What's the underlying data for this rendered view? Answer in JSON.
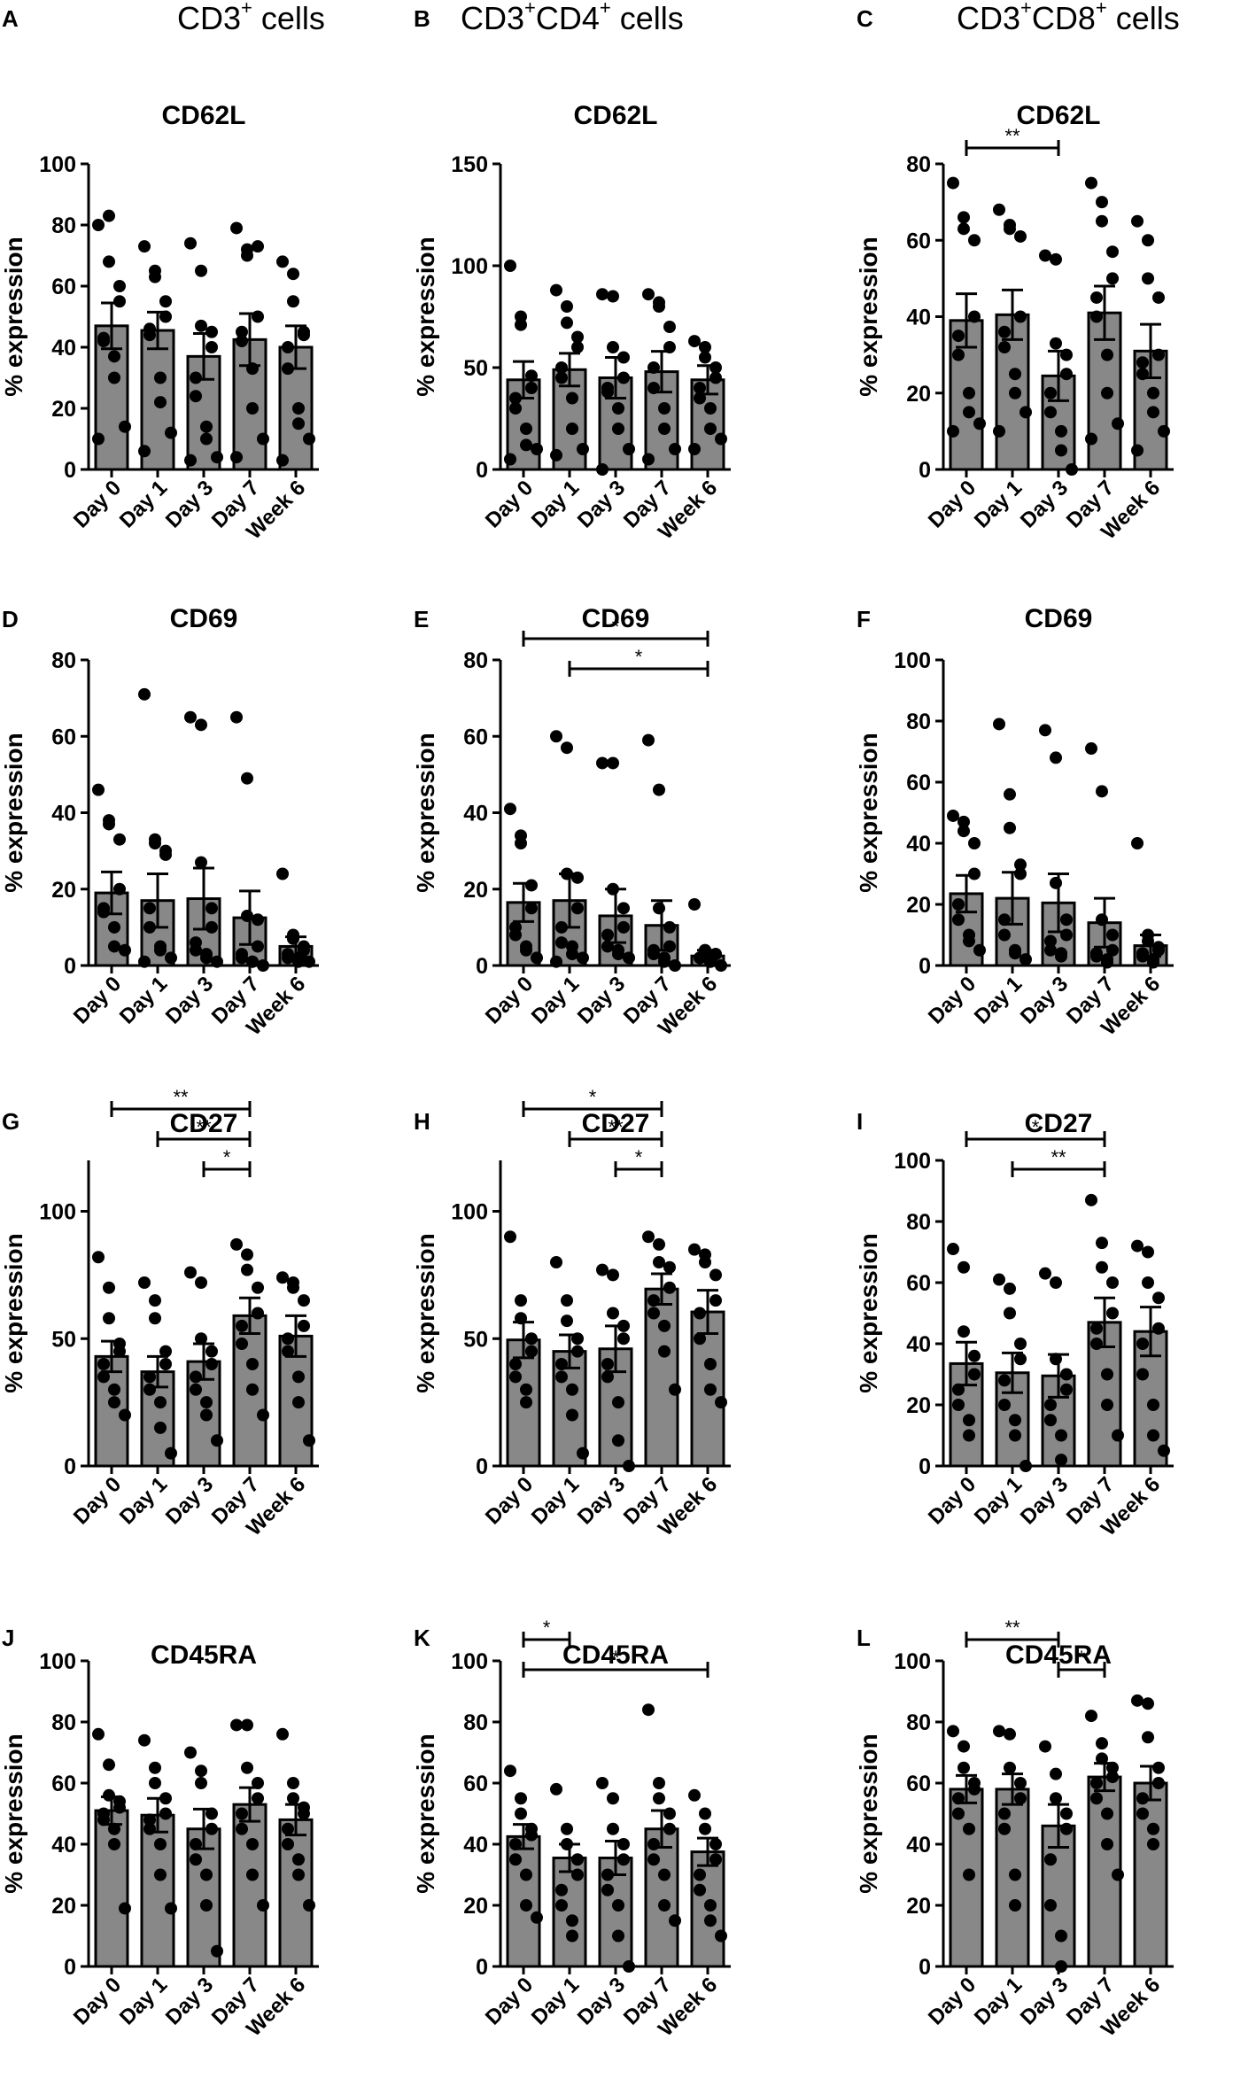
{
  "figure": {
    "column_headers": [
      {
        "parts": [
          {
            "t": "CD3",
            "sup": false
          },
          {
            "t": "+",
            "sup": true
          },
          {
            "t": " cells",
            "sup": false
          }
        ]
      },
      {
        "parts": [
          {
            "t": "CD3",
            "sup": false
          },
          {
            "t": "+",
            "sup": true
          },
          {
            "t": "CD4",
            "sup": false
          },
          {
            "t": "+",
            "sup": true
          },
          {
            "t": " cells",
            "sup": false
          }
        ]
      },
      {
        "parts": [
          {
            "t": "CD3",
            "sup": false
          },
          {
            "t": "+",
            "sup": true
          },
          {
            "t": "CD8",
            "sup": false
          },
          {
            "t": "+",
            "sup": true
          },
          {
            "t": " cells",
            "sup": false
          }
        ]
      }
    ]
  },
  "chart_data": [
    {
      "panel": "A",
      "type": "bar",
      "title": "CD62L",
      "ylabel": "% expression",
      "categories": [
        "Day 0",
        "Day 1",
        "Day 3",
        "Day 7",
        "Week 6"
      ],
      "ylim": [
        0,
        100
      ],
      "yticks": [
        0,
        20,
        40,
        60,
        80,
        100
      ],
      "means": [
        47,
        45.5,
        37,
        42.5,
        40
      ],
      "sem": [
        7.5,
        6,
        7.5,
        8.5,
        7
      ],
      "points": [
        [
          80,
          83,
          68,
          60,
          55,
          43,
          42,
          37,
          30,
          14,
          10
        ],
        [
          73,
          65,
          63,
          55,
          50,
          46,
          44,
          30,
          22,
          12,
          6
        ],
        [
          74,
          65,
          47,
          45,
          40,
          30,
          24,
          14,
          10,
          4,
          3
        ],
        [
          79,
          72,
          70,
          73,
          50,
          45,
          42,
          33,
          20,
          10,
          4
        ],
        [
          68,
          64,
          55,
          45,
          44,
          40,
          33,
          20,
          15,
          10,
          3
        ]
      ],
      "sig": []
    },
    {
      "panel": "B",
      "type": "bar",
      "title": "CD62L",
      "ylabel": "% expression",
      "categories": [
        "Day 0",
        "Day 1",
        "Day 3",
        "Day 7",
        "Week 6"
      ],
      "ylim": [
        0,
        150
      ],
      "yticks": [
        0,
        50,
        100,
        150
      ],
      "means": [
        44,
        49,
        45,
        48,
        44
      ],
      "sem": [
        9,
        8,
        10,
        10,
        7
      ],
      "points": [
        [
          100,
          75,
          71,
          46,
          40,
          35,
          30,
          20,
          12,
          10,
          5
        ],
        [
          88,
          80,
          72,
          65,
          60,
          50,
          45,
          35,
          20,
          10,
          7
        ],
        [
          86,
          85,
          60,
          55,
          45,
          40,
          38,
          30,
          20,
          10,
          0
        ],
        [
          86,
          82,
          80,
          70,
          60,
          50,
          40,
          30,
          20,
          10,
          5
        ],
        [
          63,
          60,
          55,
          50,
          45,
          40,
          35,
          30,
          20,
          15,
          10
        ]
      ],
      "sig": []
    },
    {
      "panel": "C",
      "type": "bar",
      "title": "CD62L",
      "ylabel": "% expression",
      "categories": [
        "Day 0",
        "Day 1",
        "Day 3",
        "Day 7",
        "Week 6"
      ],
      "ylim": [
        0,
        80
      ],
      "yticks": [
        0,
        20,
        40,
        60,
        80
      ],
      "means": [
        39,
        40.5,
        24.5,
        41,
        31
      ],
      "sem": [
        7,
        6.5,
        6.5,
        7,
        7
      ],
      "points": [
        [
          75,
          66,
          63,
          60,
          40,
          35,
          30,
          20,
          15,
          12,
          10
        ],
        [
          68,
          64,
          63,
          61,
          40,
          36,
          32,
          25,
          20,
          15,
          10
        ],
        [
          56,
          55,
          33,
          30,
          25,
          20,
          15,
          10,
          5,
          0
        ],
        [
          75,
          70,
          65,
          57,
          50,
          45,
          40,
          30,
          20,
          12,
          8
        ],
        [
          65,
          60,
          50,
          45,
          30,
          28,
          25,
          20,
          15,
          10,
          5
        ]
      ],
      "sig": [
        {
          "from": 0,
          "to": 2,
          "label": "**",
          "level": 0
        }
      ]
    },
    {
      "panel": "D",
      "type": "bar",
      "title": "CD69",
      "ylabel": "% expression",
      "categories": [
        "Day 0",
        "Day 1",
        "Day 3",
        "Day 7",
        "Week 6"
      ],
      "ylim": [
        0,
        80
      ],
      "yticks": [
        0,
        20,
        40,
        60,
        80
      ],
      "means": [
        19,
        17,
        17.5,
        12.5,
        5
      ],
      "sem": [
        5.5,
        7,
        8,
        7,
        2.5
      ],
      "points": [
        [
          46,
          37,
          38,
          33,
          20,
          15,
          14,
          10,
          5,
          4
        ],
        [
          71,
          33,
          32,
          30,
          29,
          15,
          10,
          5,
          4,
          2,
          1
        ],
        [
          65,
          63,
          27,
          15,
          10,
          6,
          4,
          3,
          2,
          1
        ],
        [
          65,
          49,
          13,
          12,
          5,
          3,
          2,
          1,
          1,
          0
        ],
        [
          24,
          8,
          7,
          5,
          4,
          3,
          2,
          2,
          1,
          1
        ]
      ],
      "sig": []
    },
    {
      "panel": "E",
      "type": "bar",
      "title": "CD69",
      "ylabel": "% expression",
      "categories": [
        "Day 0",
        "Day 1",
        "Day 3",
        "Day 7",
        "Week 6"
      ],
      "ylim": [
        0,
        80
      ],
      "yticks": [
        0,
        20,
        40,
        60,
        80
      ],
      "means": [
        16.5,
        17,
        13,
        10.5,
        2.5
      ],
      "sem": [
        5,
        7,
        7,
        6.5,
        1.5
      ],
      "points": [
        [
          41,
          34,
          32,
          21,
          15,
          10,
          8,
          5,
          4,
          2
        ],
        [
          60,
          57,
          24,
          23,
          15,
          10,
          6,
          5,
          3,
          2,
          1
        ],
        [
          53,
          53,
          20,
          15,
          10,
          8,
          5,
          4,
          3,
          2
        ],
        [
          59,
          46,
          15,
          10,
          5,
          4,
          3,
          2,
          1,
          0
        ],
        [
          16,
          4,
          4,
          3,
          3,
          2,
          2,
          1,
          1,
          0
        ]
      ],
      "sig": [
        {
          "from": 1,
          "to": 4,
          "label": "*",
          "level": 0
        },
        {
          "from": 0,
          "to": 4,
          "label": "*",
          "level": 1
        }
      ]
    },
    {
      "panel": "F",
      "type": "bar",
      "title": "CD69",
      "ylabel": "% expression",
      "categories": [
        "Day 0",
        "Day 1",
        "Day 3",
        "Day 7",
        "Week 6"
      ],
      "ylim": [
        0,
        100
      ],
      "yticks": [
        0,
        20,
        40,
        60,
        80,
        100
      ],
      "means": [
        23.5,
        22,
        20.5,
        14,
        6.5
      ],
      "sem": [
        6,
        8.5,
        9.5,
        8,
        3.5
      ],
      "points": [
        [
          49,
          47,
          44,
          40,
          30,
          20,
          15,
          10,
          8,
          5
        ],
        [
          79,
          56,
          45,
          33,
          30,
          15,
          10,
          5,
          4,
          2
        ],
        [
          77,
          68,
          27,
          15,
          10,
          8,
          5,
          4,
          3
        ],
        [
          71,
          57,
          15,
          10,
          5,
          4,
          3,
          2,
          1
        ],
        [
          40,
          10,
          8,
          6,
          5,
          4,
          3,
          2,
          1
        ]
      ],
      "sig": []
    },
    {
      "panel": "G",
      "type": "bar",
      "title": "CD27",
      "ylabel": "% expression",
      "categories": [
        "Day 0",
        "Day 1",
        "Day 3",
        "Day 7",
        "Week 6"
      ],
      "ylim": [
        0,
        120
      ],
      "yticks": [
        0,
        50,
        100
      ],
      "means": [
        43,
        37,
        41,
        59,
        51
      ],
      "sem": [
        6,
        6,
        7,
        7,
        8
      ],
      "points": [
        [
          82,
          70,
          58,
          48,
          45,
          40,
          35,
          30,
          25,
          20
        ],
        [
          72,
          65,
          58,
          45,
          40,
          35,
          30,
          25,
          15,
          5
        ],
        [
          76,
          72,
          50,
          45,
          40,
          35,
          30,
          25,
          20,
          10
        ],
        [
          87,
          83,
          77,
          70,
          60,
          55,
          48,
          40,
          30,
          20
        ],
        [
          74,
          72,
          70,
          65,
          55,
          50,
          45,
          35,
          25,
          10
        ]
      ],
      "sig": [
        {
          "from": 2,
          "to": 3,
          "label": "*",
          "level": 0
        },
        {
          "from": 1,
          "to": 3,
          "label": "**",
          "level": 1
        },
        {
          "from": 0,
          "to": 3,
          "label": "**",
          "level": 2
        }
      ]
    },
    {
      "panel": "H",
      "type": "bar",
      "title": "CD27",
      "ylabel": "% expression",
      "categories": [
        "Day 0",
        "Day 1",
        "Day 3",
        "Day 7",
        "Week 6"
      ],
      "ylim": [
        0,
        120
      ],
      "yticks": [
        0,
        50,
        100
      ],
      "means": [
        49.5,
        45,
        46,
        69.5,
        60.5
      ],
      "sem": [
        7,
        6.5,
        9,
        6,
        8.5
      ],
      "points": [
        [
          90,
          65,
          58,
          50,
          45,
          40,
          35,
          30,
          25
        ],
        [
          80,
          65,
          57,
          50,
          45,
          40,
          35,
          30,
          20,
          5
        ],
        [
          77,
          75,
          60,
          55,
          50,
          40,
          35,
          25,
          10,
          0
        ],
        [
          90,
          87,
          80,
          78,
          70,
          65,
          60,
          55,
          45,
          30
        ],
        [
          85,
          83,
          80,
          75,
          65,
          60,
          50,
          40,
          30,
          25
        ]
      ],
      "sig": [
        {
          "from": 2,
          "to": 3,
          "label": "*",
          "level": 0
        },
        {
          "from": 1,
          "to": 3,
          "label": "**",
          "level": 1
        },
        {
          "from": 0,
          "to": 3,
          "label": "*",
          "level": 2
        }
      ]
    },
    {
      "panel": "I",
      "type": "bar",
      "title": "CD27",
      "ylabel": "% expression",
      "categories": [
        "Day 0",
        "Day 1",
        "Day 3",
        "Day 7",
        "Week 6"
      ],
      "ylim": [
        0,
        100
      ],
      "yticks": [
        0,
        20,
        40,
        60,
        80,
        100
      ],
      "means": [
        33.5,
        30.5,
        29.5,
        47,
        44
      ],
      "sem": [
        7,
        6.5,
        7,
        8,
        8
      ],
      "points": [
        [
          71,
          65,
          44,
          36,
          30,
          25,
          20,
          15,
          10
        ],
        [
          61,
          58,
          50,
          40,
          35,
          28,
          20,
          15,
          10,
          0
        ],
        [
          63,
          60,
          35,
          30,
          25,
          20,
          15,
          10,
          2
        ],
        [
          87,
          73,
          65,
          60,
          50,
          45,
          40,
          30,
          20,
          10
        ],
        [
          72,
          70,
          60,
          55,
          45,
          40,
          30,
          20,
          10,
          5
        ]
      ],
      "sig": [
        {
          "from": 1,
          "to": 3,
          "label": "**",
          "level": 0
        },
        {
          "from": 0,
          "to": 3,
          "label": "*",
          "level": 1
        }
      ]
    },
    {
      "panel": "J",
      "type": "bar",
      "title": "CD45RA",
      "ylabel": "% expression",
      "categories": [
        "Day 0",
        "Day 1",
        "Day 3",
        "Day 7",
        "Week 6"
      ],
      "ylim": [
        0,
        100
      ],
      "yticks": [
        0,
        20,
        40,
        60,
        80,
        100
      ],
      "means": [
        51,
        49.5,
        45,
        53,
        48
      ],
      "sem": [
        4.5,
        5.5,
        6.5,
        5.5,
        5
      ],
      "points": [
        [
          76,
          66,
          56,
          54,
          52,
          50,
          48,
          45,
          40,
          19
        ],
        [
          74,
          65,
          60,
          55,
          50,
          48,
          45,
          40,
          30,
          19
        ],
        [
          70,
          64,
          60,
          50,
          45,
          40,
          35,
          30,
          20,
          5
        ],
        [
          79,
          79,
          65,
          60,
          55,
          50,
          45,
          40,
          30,
          20
        ],
        [
          76,
          60,
          55,
          52,
          50,
          45,
          40,
          35,
          30,
          20
        ]
      ],
      "sig": []
    },
    {
      "panel": "K",
      "type": "bar",
      "title": "CD45RA",
      "ylabel": "% expression",
      "categories": [
        "Day 0",
        "Day 1",
        "Day 3",
        "Day 7",
        "Week 6"
      ],
      "ylim": [
        0,
        100
      ],
      "yticks": [
        0,
        20,
        40,
        60,
        80,
        100
      ],
      "means": [
        42.5,
        35.5,
        35.5,
        45,
        37.5
      ],
      "sem": [
        4,
        4.5,
        5.5,
        6,
        4.5
      ],
      "points": [
        [
          64,
          55,
          50,
          45,
          43,
          40,
          35,
          30,
          20,
          16
        ],
        [
          58,
          45,
          40,
          35,
          30,
          25,
          20,
          15,
          10
        ],
        [
          60,
          55,
          45,
          40,
          35,
          30,
          25,
          20,
          10,
          0
        ],
        [
          84,
          60,
          55,
          50,
          45,
          40,
          35,
          30,
          20,
          15
        ],
        [
          56,
          50,
          45,
          40,
          35,
          30,
          25,
          20,
          15,
          10
        ]
      ],
      "sig": [
        {
          "from": 0,
          "to": 4,
          "label": "*",
          "level": 0
        },
        {
          "from": 0,
          "to": 1,
          "label": "*",
          "level": 1
        }
      ]
    },
    {
      "panel": "L",
      "type": "bar",
      "title": "CD45RA",
      "ylabel": "% expression",
      "categories": [
        "Day 0",
        "Day 1",
        "Day 3",
        "Day 7",
        "Week 6"
      ],
      "ylim": [
        0,
        100
      ],
      "yticks": [
        0,
        20,
        40,
        60,
        80,
        100
      ],
      "means": [
        58,
        58,
        46,
        62,
        60
      ],
      "sem": [
        4.5,
        5,
        7,
        4.5,
        5.5
      ],
      "points": [
        [
          77,
          72,
          65,
          60,
          58,
          55,
          50,
          45,
          30
        ],
        [
          77,
          76,
          65,
          60,
          55,
          50,
          45,
          30,
          20
        ],
        [
          72,
          63,
          55,
          50,
          45,
          35,
          20,
          10,
          0
        ],
        [
          82,
          73,
          68,
          65,
          62,
          60,
          55,
          50,
          40,
          30
        ],
        [
          87,
          86,
          75,
          65,
          60,
          55,
          50,
          45,
          40
        ]
      ],
      "sig": [
        {
          "from": 2,
          "to": 3,
          "label": "*",
          "level": 0
        },
        {
          "from": 0,
          "to": 2,
          "label": "**",
          "level": 1
        }
      ]
    }
  ]
}
